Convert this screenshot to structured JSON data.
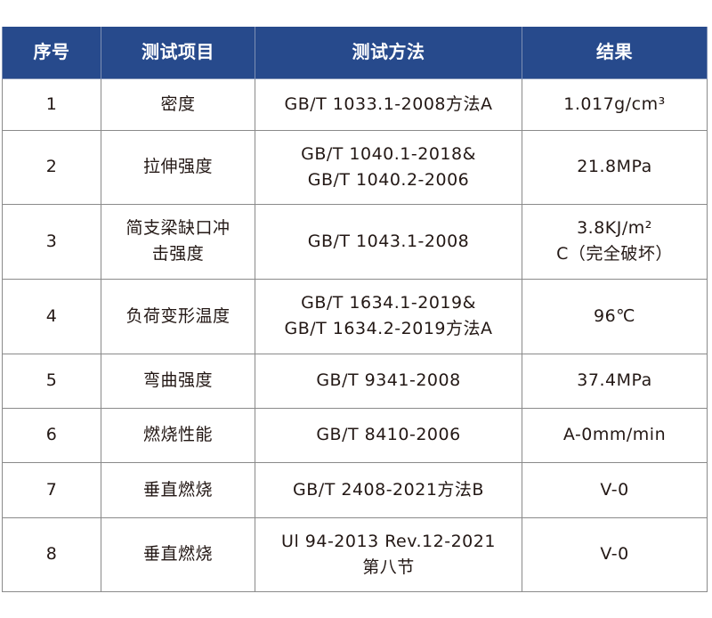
{
  "header": {
    "col_no": "序号",
    "col_item": "测试项目",
    "col_method": "测试方法",
    "col_result": "结果"
  },
  "accent_color": "#274a8c",
  "rows": [
    {
      "no": "1",
      "item": "密度",
      "method": "GB/T 1033.1-2008方法A",
      "result": "1.017g/cm³"
    },
    {
      "no": "2",
      "item": "拉伸强度",
      "method": "GB/T 1040.1-2018&\nGB/T 1040.2-2006",
      "result": "21.8MPa"
    },
    {
      "no": "3",
      "item": "简支梁缺口冲\n击强度",
      "method": "GB/T 1043.1-2008",
      "result": "3.8KJ/m²\nC（完全破坏）"
    },
    {
      "no": "4",
      "item": "负荷变形温度",
      "method": "GB/T 1634.1-2019&\nGB/T 1634.2-2019方法A",
      "result": "96℃"
    },
    {
      "no": "5",
      "item": "弯曲强度",
      "method": "GB/T 9341-2008",
      "result": "37.4MPa"
    },
    {
      "no": "6",
      "item": "燃烧性能",
      "method": "GB/T 8410-2006",
      "result": "A-0mm/min"
    },
    {
      "no": "7",
      "item": "垂直燃烧",
      "method": "GB/T 2408-2021方法B",
      "result": "V-0"
    },
    {
      "no": "8",
      "item": "垂直燃烧",
      "method": "Ul 94-2013 Rev.12-2021\n第八节",
      "result": "V-0"
    }
  ]
}
